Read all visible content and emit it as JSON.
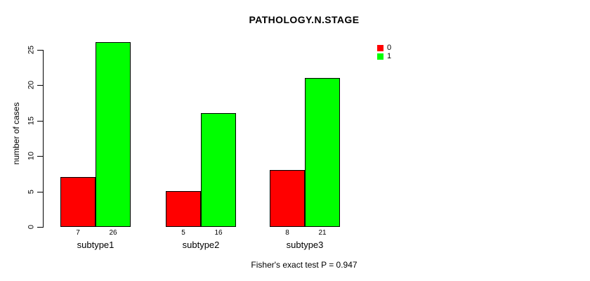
{
  "chart_data": {
    "type": "bar",
    "title": "PATHOLOGY.N.STAGE",
    "xlabel": "",
    "ylabel": "number of cases",
    "categories": [
      "subtype1",
      "subtype2",
      "subtype3"
    ],
    "series": [
      {
        "name": "0",
        "color": "#FF0000",
        "values": [
          7,
          5,
          8
        ]
      },
      {
        "name": "1",
        "color": "#00FF00",
        "values": [
          26,
          16,
          21
        ]
      }
    ],
    "bar_value_labels": [
      [
        "7",
        "26"
      ],
      [
        "5",
        "16"
      ],
      [
        "8",
        "21"
      ]
    ],
    "yticks": [
      0,
      5,
      10,
      15,
      20,
      25
    ],
    "ylim": [
      0,
      26
    ],
    "grid": false,
    "legend_position": "top-right",
    "annotation": "Fisher's exact test P = 0.947",
    "axis_color": "#000000",
    "text_color": "#000000",
    "background_color": "#FFFFFF"
  }
}
